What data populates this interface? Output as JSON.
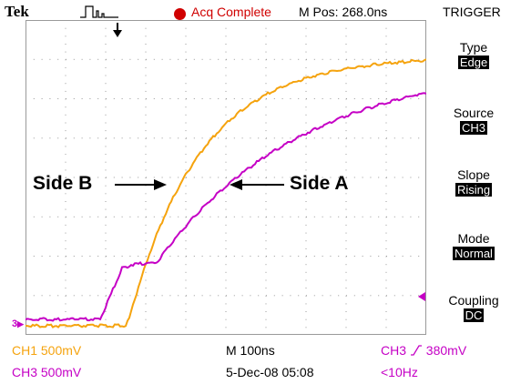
{
  "header": {
    "brand": "Tek",
    "acq_status": "Acq Complete",
    "position_readout": "M Pos: 268.0ns"
  },
  "side_menu": {
    "title": "TRIGGER",
    "items": [
      {
        "label": "Type",
        "value": "Edge"
      },
      {
        "label": "Source",
        "value": "CH3"
      },
      {
        "label": "Slope",
        "value": "Rising"
      },
      {
        "label": "Mode",
        "value": "Normal"
      },
      {
        "label": "Coupling",
        "value": "DC"
      }
    ]
  },
  "annotations": {
    "left": "Side B",
    "right": "Side A"
  },
  "channel_markers": {
    "ch3_ground": "3"
  },
  "readouts": {
    "ch1_scale": "CH1  500mV",
    "ch3_scale": "CH3  500mV",
    "timebase": "M 100ns",
    "datetime": "5-Dec-08 05:08",
    "trigger_source": "CH3",
    "trigger_level": "380mV",
    "trigger_freq": "<10Hz"
  },
  "colors": {
    "ch1": "#f5a30e",
    "ch3": "#c500c5",
    "grid": "#9a9a9a",
    "acq_indicator": "#d00000"
  },
  "icons": [
    "trigger-pulse-icon",
    "trigger-position-arrow-icon",
    "trigger-level-arrow-icon",
    "rising-edge-icon"
  ]
}
